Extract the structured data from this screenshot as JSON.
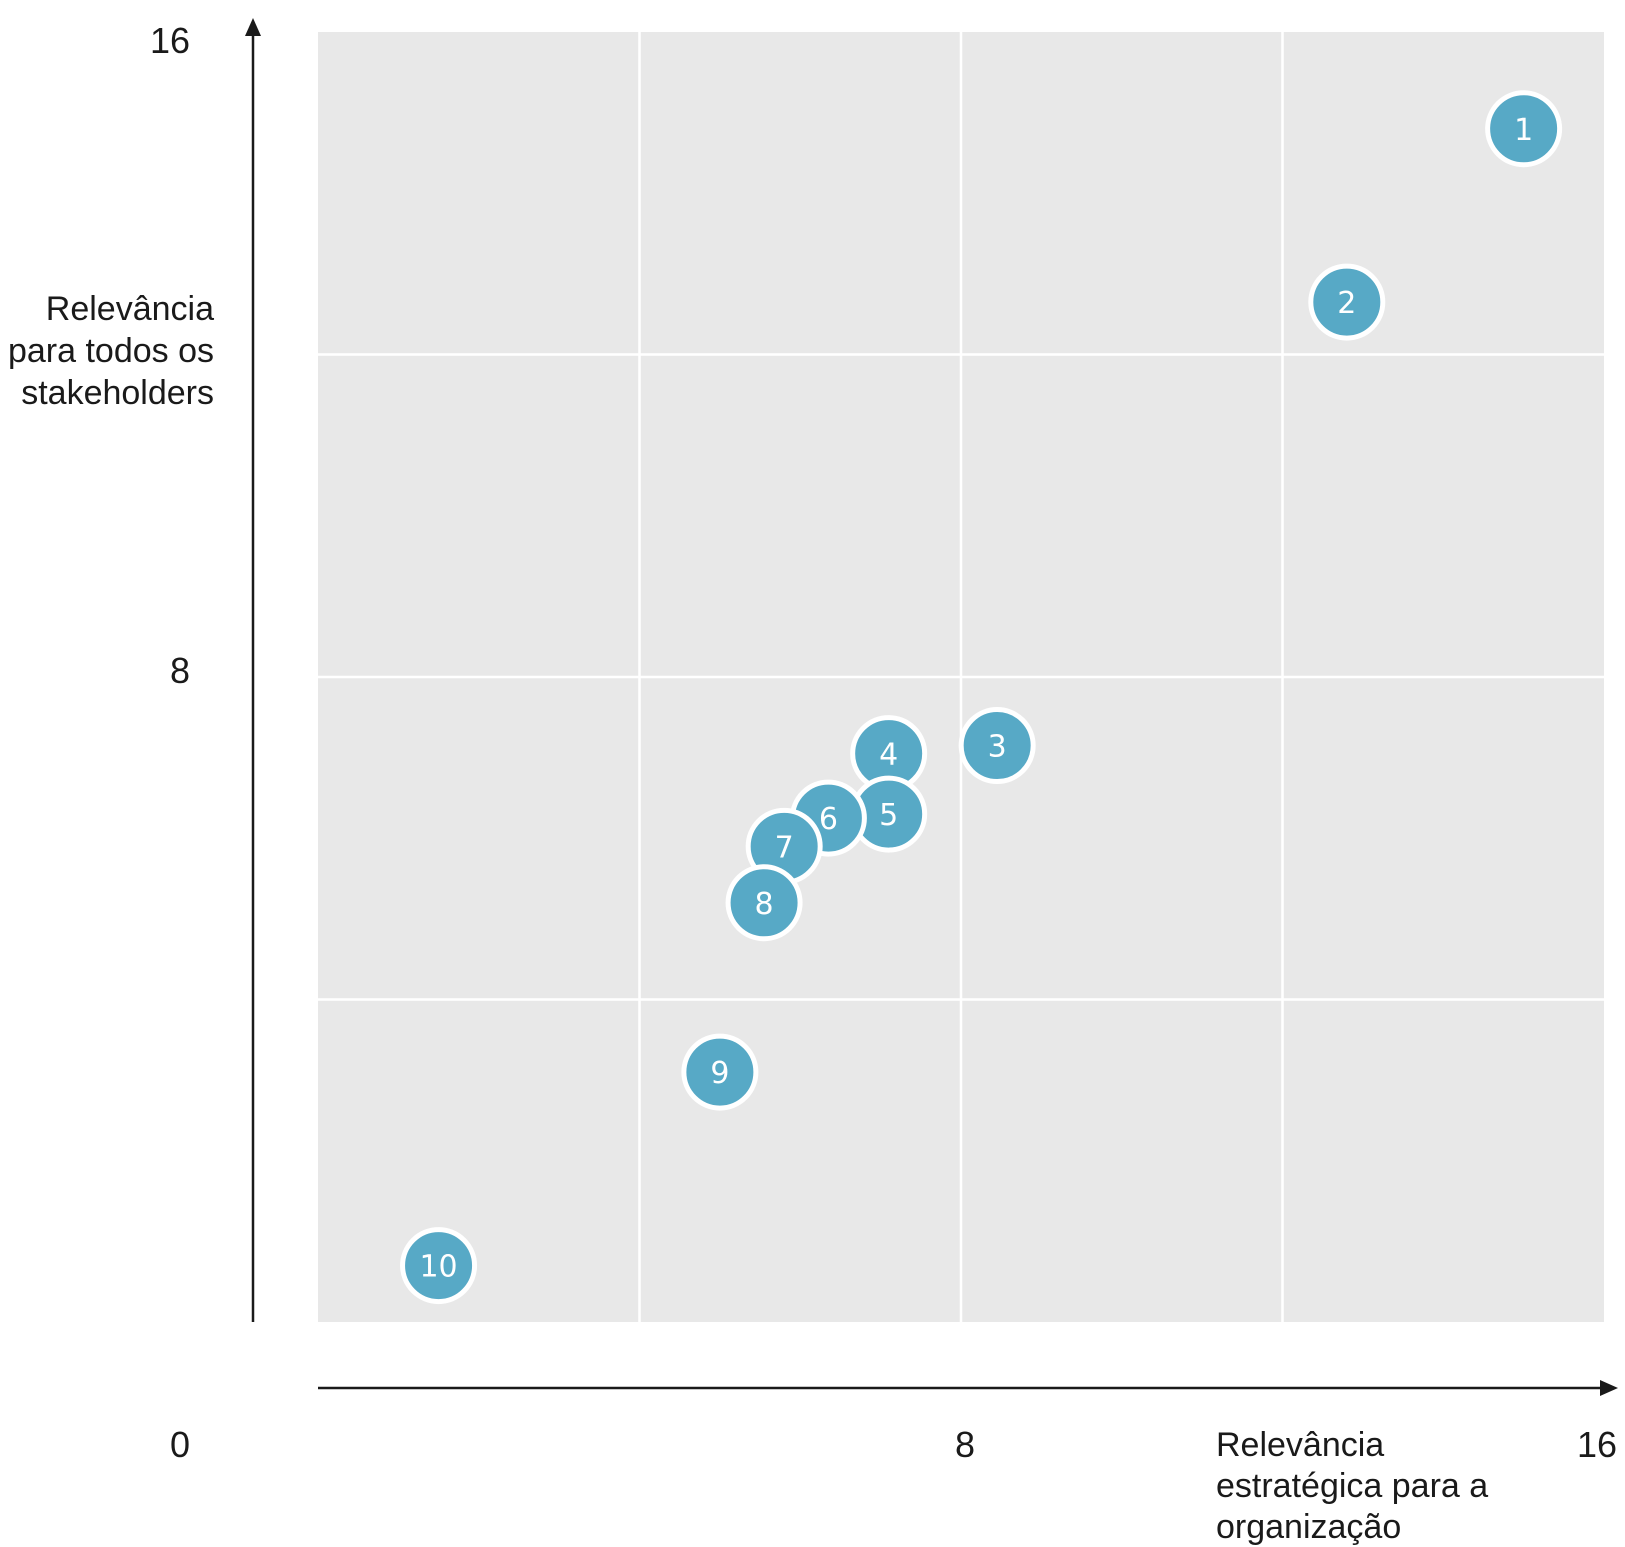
{
  "chart_data": {
    "type": "scatter",
    "title": "",
    "xlabel": [
      "Relevância",
      "estratégica para a",
      "organização"
    ],
    "ylabel": [
      "Relevância",
      "para todos os",
      "stakeholders"
    ],
    "xlim": [
      0,
      16
    ],
    "ylim": [
      0,
      16
    ],
    "x_ticks": [
      "0",
      "8",
      "16"
    ],
    "y_ticks": [
      "16",
      "8"
    ],
    "grid": true,
    "grid_divisions": 4,
    "marker_color": "#57a9c6",
    "plot_background": "#e8e8e8",
    "points": [
      {
        "label": "1",
        "x": 15.0,
        "y": 14.8
      },
      {
        "label": "2",
        "x": 12.8,
        "y": 12.65
      },
      {
        "label": "3",
        "x": 8.45,
        "y": 7.15
      },
      {
        "label": "4",
        "x": 7.1,
        "y": 7.05
      },
      {
        "label": "5",
        "x": 7.1,
        "y": 6.3
      },
      {
        "label": "6",
        "x": 6.35,
        "y": 6.25
      },
      {
        "label": "7",
        "x": 5.8,
        "y": 5.9
      },
      {
        "label": "8",
        "x": 5.55,
        "y": 5.2
      },
      {
        "label": "9",
        "x": 5.0,
        "y": 3.1
      },
      {
        "label": "10",
        "x": 1.5,
        "y": 0.7
      }
    ]
  }
}
